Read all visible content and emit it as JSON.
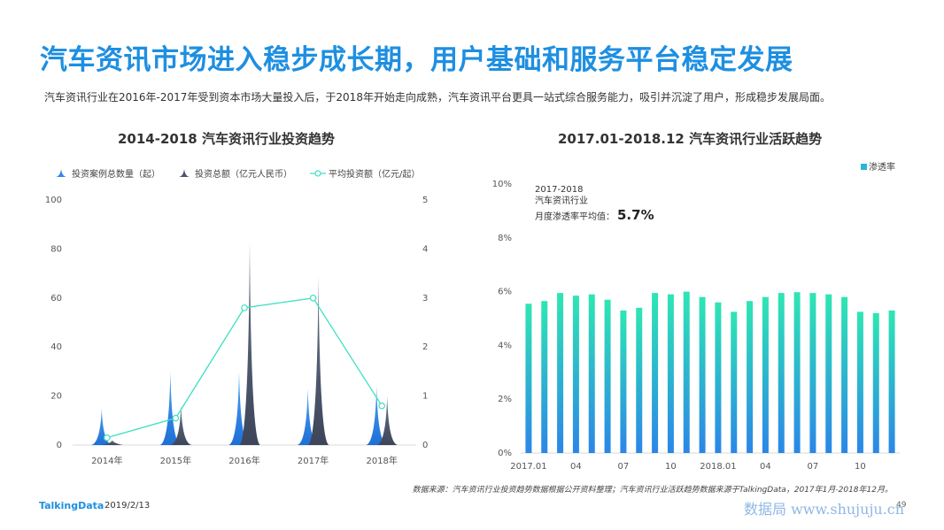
{
  "page": {
    "title": "汽车资讯市场进入稳步成长期，用户基础和服务平台稳定发展",
    "subtitle": "汽车资讯行业在2016年-2017年受到资本市场大量投入后，于2018年开始走向成熟，汽车资讯平台更具一站式综合服务能力，吸引并沉淀了用户，形成稳步发展局面。",
    "source": "数据来源：汽车资讯行业投资趋势数据根据公开资料整理；汽车资讯行业活跃趋势数据来源于TalkingData，2017年1月-2018年12月。",
    "brand": "TalkingData",
    "date": "2019/2/13",
    "watermark": "数据局 www.shujuju.cn",
    "page_number": "49"
  },
  "chart_data": [
    {
      "type": "bar",
      "title": "2014-2018 汽车资讯行业投资趋势",
      "categories": [
        "2014年",
        "2015年",
        "2016年",
        "2017年",
        "2018年"
      ],
      "series": [
        {
          "name": "投资案例总数量（起）",
          "values": [
            15,
            30,
            30,
            23,
            24
          ],
          "axis": "left",
          "color": "#2f87e8"
        },
        {
          "name": "投资总额（亿元人民币）",
          "values": [
            2,
            16,
            83,
            69,
            20
          ],
          "axis": "left",
          "color": "#4a556a"
        },
        {
          "name": "平均投资额（亿元/起）",
          "values": [
            0.15,
            0.55,
            2.8,
            3.0,
            0.8
          ],
          "axis": "right",
          "type": "line",
          "color": "#3de0c2"
        }
      ],
      "ylim_left": [
        0,
        100
      ],
      "yticks_left": [
        "0",
        "20",
        "40",
        "60",
        "80",
        "100"
      ],
      "ylim_right": [
        0,
        5
      ],
      "yticks_right": [
        "0",
        "1",
        "2",
        "3",
        "4",
        "5"
      ],
      "legend_position": "top-left"
    },
    {
      "type": "bar",
      "title": "2017.01-2018.12 汽车资讯行业活跃趋势",
      "series": [
        {
          "name": "渗透率",
          "values": [
            5.55,
            5.65,
            5.95,
            5.85,
            5.9,
            5.7,
            5.3,
            5.4,
            5.95,
            5.9,
            6.0,
            5.8,
            5.6,
            5.25,
            5.65,
            5.8,
            5.95,
            5.98,
            5.95,
            5.9,
            5.8,
            5.25,
            5.2,
            5.3
          ]
        }
      ],
      "xticks": [
        "2017.01",
        "04",
        "07",
        "10",
        "2018.01",
        "04",
        "07",
        "10"
      ],
      "yticks": [
        "0%",
        "2%",
        "4%",
        "6%",
        "8%",
        "10%"
      ],
      "ylim": [
        0,
        10
      ],
      "annotation": {
        "line1": "2017-2018",
        "line2": "汽车资讯行业",
        "line3": "月度渗透率平均值：",
        "value": "5.7%"
      },
      "legend_position": "top-right"
    }
  ]
}
